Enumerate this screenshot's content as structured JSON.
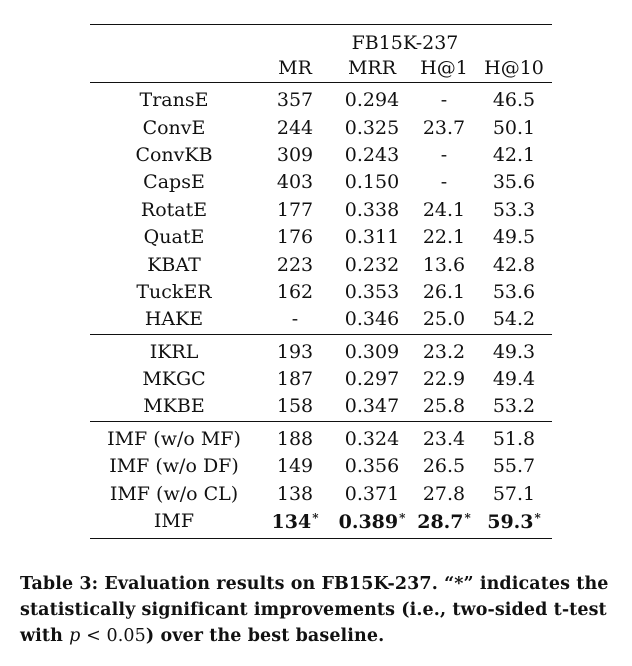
{
  "table": {
    "dataset": "FB15K-237",
    "columns": [
      "",
      "MR",
      "MRR",
      "H@1",
      "H@10"
    ],
    "groups": [
      [
        [
          "TransE",
          "357",
          "0.294",
          "-",
          "46.5"
        ],
        [
          "ConvE",
          "244",
          "0.325",
          "23.7",
          "50.1"
        ],
        [
          "ConvKB",
          "309",
          "0.243",
          "-",
          "42.1"
        ],
        [
          "CapsE",
          "403",
          "0.150",
          "-",
          "35.6"
        ],
        [
          "RotatE",
          "177",
          "0.338",
          "24.1",
          "53.3"
        ],
        [
          "QuatE",
          "176",
          "0.311",
          "22.1",
          "49.5"
        ],
        [
          "KBAT",
          "223",
          "0.232",
          "13.6",
          "42.8"
        ],
        [
          "TuckER",
          "162",
          "0.353",
          "26.1",
          "53.6"
        ],
        [
          "HAKE",
          "-",
          "0.346",
          "25.0",
          "54.2"
        ]
      ],
      [
        [
          "IKRL",
          "193",
          "0.309",
          "23.2",
          "49.3"
        ],
        [
          "MKGC",
          "187",
          "0.297",
          "22.9",
          "49.4"
        ],
        [
          "MKBE",
          "158",
          "0.347",
          "25.8",
          "53.2"
        ]
      ],
      [
        [
          "IMF (w/o MF)",
          "188",
          "0.324",
          "23.4",
          "51.8"
        ],
        [
          "IMF (w/o DF)",
          "149",
          "0.356",
          "26.5",
          "55.7"
        ],
        [
          "IMF (w/o CL)",
          "138",
          "0.371",
          "27.8",
          "57.1"
        ]
      ]
    ],
    "final_row": {
      "model": "IMF",
      "mr": "134",
      "mrr": "0.389",
      "h1": "28.7",
      "h10": "59.3",
      "marker": "*"
    }
  },
  "caption": {
    "part1": "Table 3: Evaluation results on FB15K-237. “*” indicates the statistically significant improvements (i.e., two-sided t-test with ",
    "p": "p",
    "lt": " < ",
    "num": "0.05",
    "part2": ") over the best baseline."
  }
}
